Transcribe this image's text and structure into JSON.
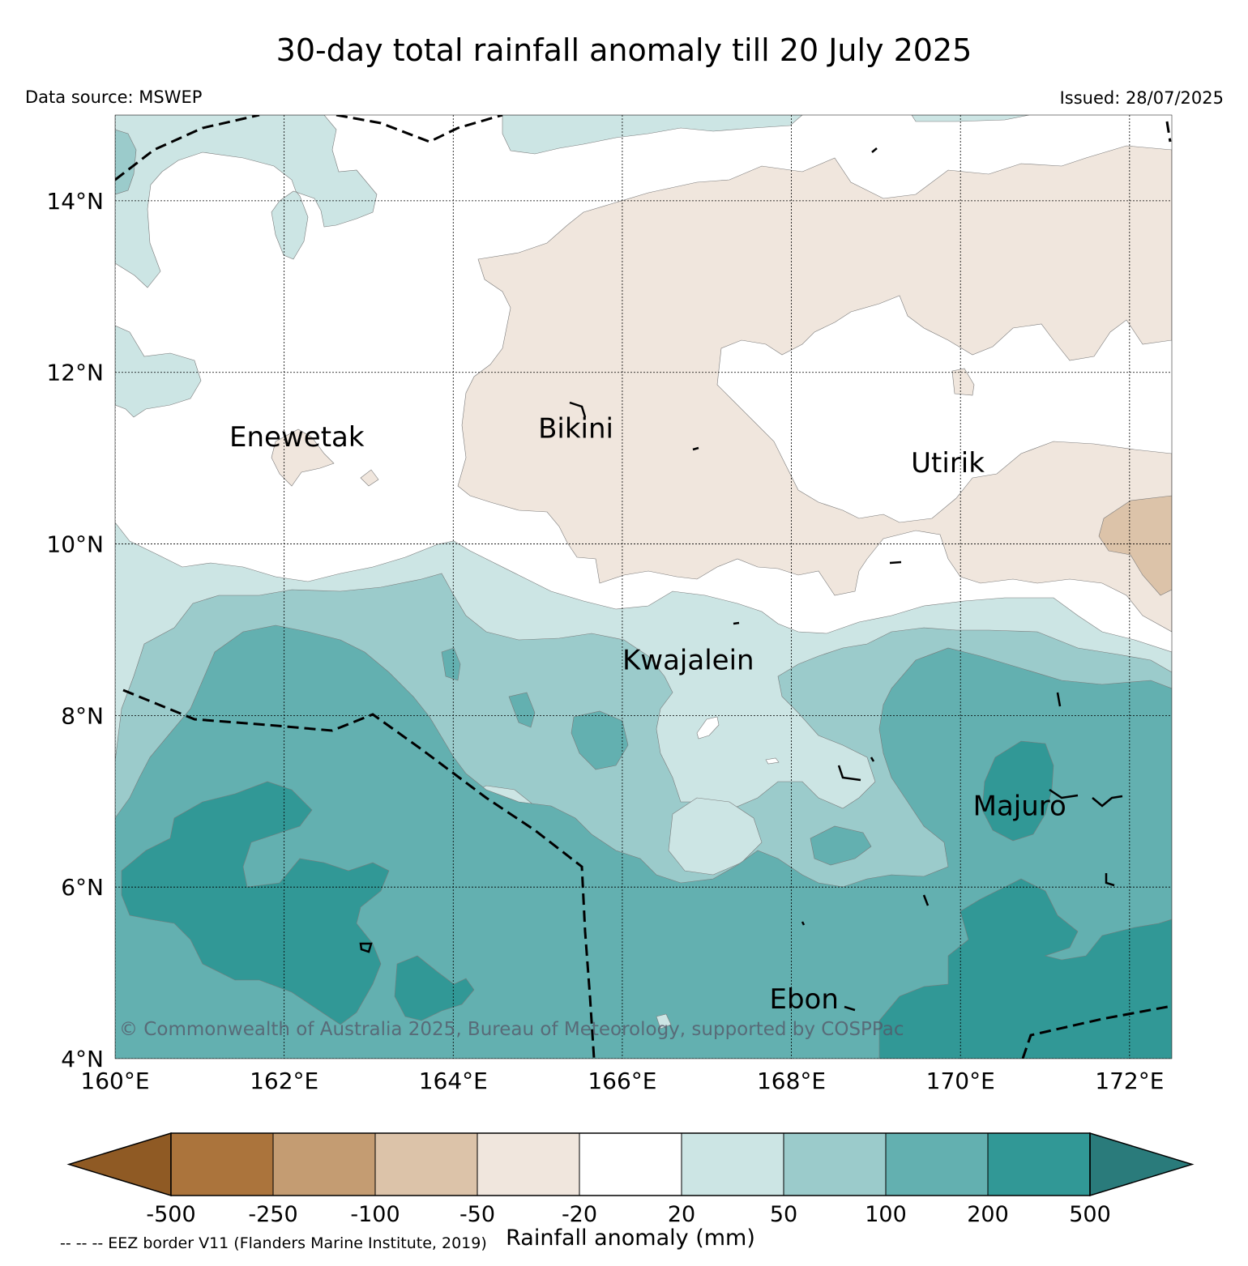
{
  "title": "30-day total rainfall anomaly till 20 July 2025",
  "data_source": "Data source: MSWEP",
  "issued": "Issued: 28/07/2025",
  "copyright": "© Commonwealth of Australia 2025, Bureau of Meteorology, supported by COSPPac",
  "map_extent": {
    "lon": [
      160,
      172.5
    ],
    "lat": [
      4,
      15
    ]
  },
  "lat_ticks": [
    {
      "value": 14,
      "label": "14°N"
    },
    {
      "value": 12,
      "label": "12°N"
    },
    {
      "value": 10,
      "label": "10°N"
    },
    {
      "value": 8,
      "label": "8°N"
    },
    {
      "value": 6,
      "label": "6°N"
    },
    {
      "value": 4,
      "label": "4°N"
    }
  ],
  "lon_ticks": [
    {
      "value": 160,
      "label": "160°E"
    },
    {
      "value": 162,
      "label": "162°E"
    },
    {
      "value": 164,
      "label": "164°E"
    },
    {
      "value": 166,
      "label": "166°E"
    },
    {
      "value": 168,
      "label": "168°E"
    },
    {
      "value": 170,
      "label": "170°E"
    },
    {
      "value": 172,
      "label": "172°E"
    }
  ],
  "places": [
    {
      "name": "Enewetak",
      "lon": 162.15,
      "lat": 11.25
    },
    {
      "name": "Bikini",
      "lon": 165.45,
      "lat": 11.35
    },
    {
      "name": "Utirik",
      "lon": 169.85,
      "lat": 10.95
    },
    {
      "name": "Kwajalein",
      "lon": 166.78,
      "lat": 8.65
    },
    {
      "name": "Majuro",
      "lon": 170.7,
      "lat": 6.95
    },
    {
      "name": "Ebon",
      "lon": 168.15,
      "lat": 4.7
    }
  ],
  "legend": {
    "title": "Rainfall anomaly (mm)",
    "ticks": [
      "-500",
      "-250",
      "-100",
      "-50",
      "-20",
      "20",
      "50",
      "100",
      "200",
      "500"
    ],
    "under_color": "#8f5a24",
    "over_color": "#2a7b7b",
    "bins": [
      {
        "range": "-500 to -250",
        "color": "#ab743c"
      },
      {
        "range": "-250 to -100",
        "color": "#c49c72"
      },
      {
        "range": "-100 to -50",
        "color": "#dcc3a9"
      },
      {
        "range": "-50 to -20",
        "color": "#f0e6dd"
      },
      {
        "range": "-20 to 20",
        "color": "#ffffff"
      },
      {
        "range": "20 to 50",
        "color": "#cce5e4"
      },
      {
        "range": "50 to 100",
        "color": "#9bcbcb"
      },
      {
        "range": "100 to 200",
        "color": "#63b0b0"
      },
      {
        "range": "200 to 500",
        "color": "#319896"
      }
    ]
  },
  "eez_note": "-- -- -- EEZ border V11 (Flanders Marine Institute, 2019)"
}
